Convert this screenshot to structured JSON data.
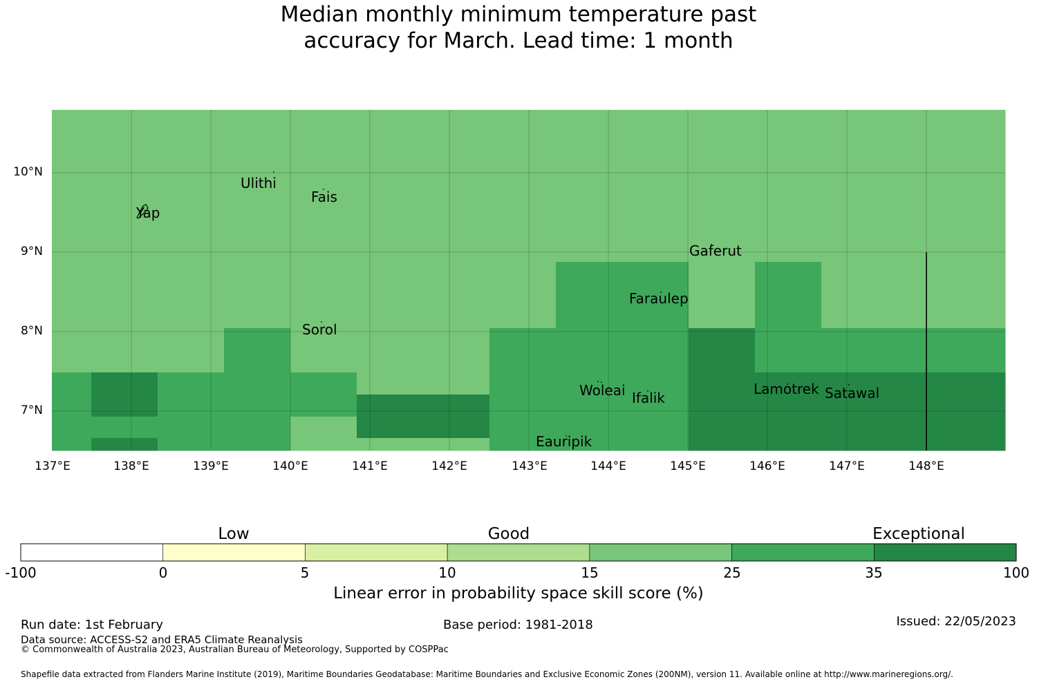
{
  "title": {
    "line1": "Median monthly minimum temperature past",
    "line2": "accuracy for March. Lead time: 1 month"
  },
  "map": {
    "lat_labels": [
      "10°N",
      "9°N",
      "8°N",
      "7°N"
    ],
    "lon_labels": [
      "137°E",
      "138°E",
      "139°E",
      "140°E",
      "141°E",
      "142°E",
      "143°E",
      "144°E",
      "145°E",
      "146°E",
      "147°E",
      "148°E"
    ],
    "places": [
      "Yap",
      "Ulithi",
      "Fais",
      "Gaferut",
      "Faraulep",
      "Sorol",
      "Woleai",
      "Ifalik",
      "Lamotrek",
      "Satawal",
      "Eauripik"
    ],
    "grid_colors": [
      "#258745",
      "#3fa95b",
      "#78c679"
    ],
    "grid_rows": [
      "2222222222222",
      "2222222222222",
      "2222222222222",
      "2222222222222",
      "2222222222222",
      "2222222222222",
      "2222222222222",
      "2222222211212",
      "2222222211212",
      "2221222111011",
      "2221222111011",
      "1011122111000",
      "1011122111000",
      "1111222111000",
      "1011222111000"
    ]
  },
  "colorbar": {
    "categories": [
      "Low",
      "Good",
      "Exceptional"
    ],
    "ticks": [
      "-100",
      "0",
      "5",
      "10",
      "15",
      "25",
      "35",
      "100"
    ],
    "colors": [
      "#ffffff",
      "#ffffcc",
      "#d9f0a3",
      "#addd8e",
      "#78c679",
      "#3fa95b",
      "#258745"
    ],
    "label": "Linear error in probability space skill score (%)"
  },
  "footer": {
    "run_date": "Run date: 1st February",
    "base_period": "Base period: 1981-2018",
    "issued": "Issued: 22/05/2023",
    "data_source": "Data source: ACCESS-S2 and ERA5 Climate Reanalysis",
    "copyright": "© Commonwealth of Australia 2023, Australian Bureau of Meteorology, Supported by COSPPac",
    "shapefile": "Shapefile data extracted from Flanders Marine Institute (2019), Maritime Boundaries Geodatabase: Maritime Boundaries and Exclusive Economic Zones (200NM), version 11. Available online at http://www.marineregions.org/."
  }
}
